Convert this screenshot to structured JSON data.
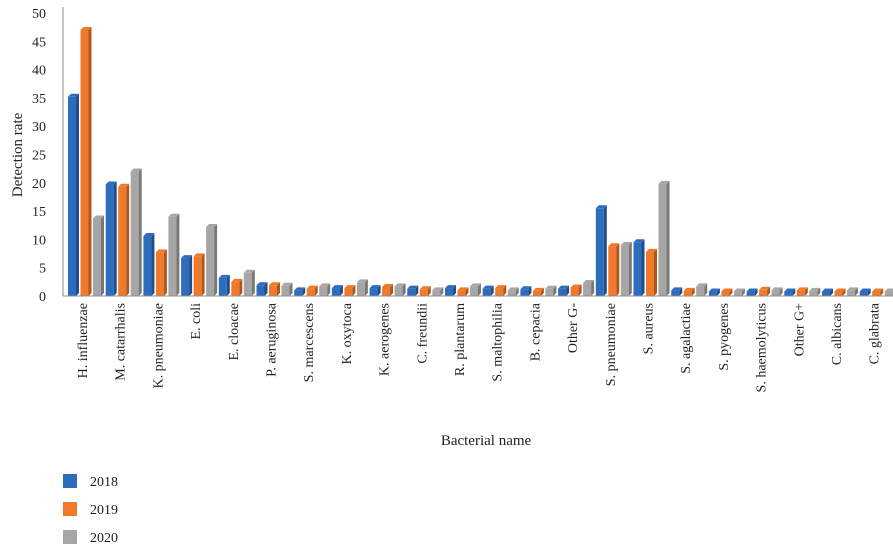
{
  "chart_data": {
    "type": "bar",
    "xlabel": "Bacterial name",
    "ylabel": "Detection rate",
    "ylim": [
      0,
      50
    ],
    "yticks": [
      "0",
      "5",
      "10",
      "15",
      "20",
      "25",
      "30",
      "35",
      "40",
      "45",
      "50"
    ],
    "grid": false,
    "legend_position": "bottom-left",
    "categories": [
      "H. influenzae",
      "M. catarrhalis",
      "K. pneumoniae",
      "E. coli",
      "E. cloacae",
      "P. aeruginosa",
      "S. marcescens",
      "K. oxytoca",
      "K. aerogenes",
      "C. freundii",
      "R. plantarum",
      "S. maltophilia",
      "B. cepacia",
      "Other G-",
      "S. pneumoniae",
      "S. aureus",
      "S. agalactiae",
      "S. pyogenes",
      "S. haemolyticus",
      "Other G+",
      "C. albicans",
      "C. glabrata"
    ],
    "series": [
      {
        "name": "2018",
        "color": "#2e6dbd",
        "values": [
          35.2,
          19.7,
          10.6,
          6.7,
          3.2,
          1.9,
          1.0,
          1.4,
          1.4,
          1.3,
          1.4,
          1.3,
          1.2,
          1.3,
          15.5,
          9.5,
          1.0,
          0.8,
          0.8,
          0.8,
          0.8,
          0.8
        ]
      },
      {
        "name": "2019",
        "color": "#f07a2a",
        "values": [
          47.0,
          19.3,
          7.7,
          7.0,
          2.5,
          1.9,
          1.3,
          1.4,
          1.6,
          1.2,
          1.0,
          1.4,
          0.9,
          1.5,
          8.8,
          7.8,
          0.9,
          0.8,
          1.1,
          1.0,
          0.8,
          0.8
        ]
      },
      {
        "name": "2020",
        "color": "#a6a6a6",
        "values": [
          13.7,
          22.0,
          14.0,
          12.2,
          4.1,
          1.8,
          1.7,
          2.4,
          1.7,
          1.0,
          1.7,
          1.0,
          1.3,
          2.3,
          9.0,
          19.8,
          1.7,
          0.8,
          1.0,
          0.9,
          1.0,
          0.8
        ]
      }
    ]
  }
}
